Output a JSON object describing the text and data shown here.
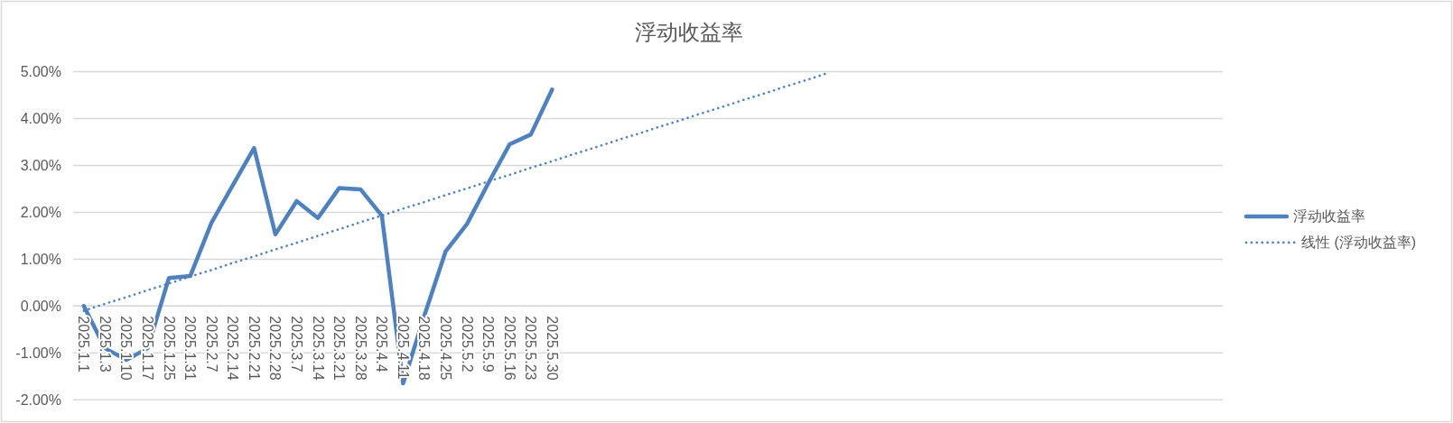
{
  "chart_data": {
    "type": "line",
    "title": "浮动收益率",
    "categories": [
      "2025.1.1",
      "2025.1.3",
      "2025.1.10",
      "2025.1.17",
      "2025.1.25",
      "2025.1.31",
      "2025.2.7",
      "2025.2.14",
      "2025.2.21",
      "2025.2.28",
      "2025.3.7",
      "2025.3.14",
      "2025.3.21",
      "2025.3.28",
      "2025.4.4",
      "2025.4.11",
      "2025.4.18",
      "2025.4.25",
      "2025.5.2",
      "2025.5.9",
      "2025.5.16",
      "2025.5.23",
      "2025.5.30",
      null,
      null,
      null,
      null,
      null,
      null,
      null,
      null,
      null,
      null,
      null,
      null,
      null,
      null,
      null,
      null,
      null,
      null,
      null,
      null,
      null,
      null,
      null,
      null,
      null,
      null,
      null,
      null,
      null,
      null,
      null
    ],
    "series": [
      {
        "name": "浮动收益率",
        "color": "#4f81bd",
        "line_style": "solid",
        "values": [
          0.0,
          -0.9,
          -1.15,
          -0.9,
          0.6,
          0.64,
          1.78,
          2.58,
          3.37,
          1.53,
          2.24,
          1.88,
          2.52,
          2.49,
          1.93,
          -1.65,
          -0.2,
          1.17,
          1.75,
          2.62,
          3.45,
          3.66,
          4.62,
          null,
          null,
          null,
          null,
          null,
          null,
          null,
          null,
          null,
          null,
          null,
          null,
          null,
          null,
          null,
          null,
          null,
          null,
          null,
          null,
          null,
          null,
          null,
          null,
          null,
          null,
          null,
          null,
          null,
          null,
          null
        ]
      },
      {
        "name": "线性 (浮动收益率)",
        "color": "#4f81bd",
        "line_style": "dotted",
        "values": [
          -0.1,
          0.05,
          0.19,
          0.34,
          0.48,
          0.63,
          0.77,
          0.92,
          1.06,
          1.21,
          1.35,
          1.5,
          1.64,
          1.79,
          1.93,
          2.08,
          2.22,
          2.37,
          2.51,
          2.66,
          2.8,
          2.95,
          3.09,
          3.24,
          3.38,
          3.53,
          3.67,
          3.82,
          3.96,
          4.11,
          4.25,
          4.4,
          4.54,
          4.69,
          4.83,
          4.98,
          null,
          null,
          null,
          null,
          null,
          null,
          null,
          null,
          null,
          null,
          null,
          null,
          null,
          null,
          null,
          null,
          null,
          null
        ]
      }
    ],
    "ylim": [
      -2,
      5
    ],
    "yticks": [
      {
        "value": -2,
        "label": "-2.00%"
      },
      {
        "value": -1,
        "label": "-1.00%"
      },
      {
        "value": 0,
        "label": "0.00%"
      },
      {
        "value": 1,
        "label": "1.00%"
      },
      {
        "value": 2,
        "label": "2.00%"
      },
      {
        "value": 3,
        "label": "3.00%"
      },
      {
        "value": 4,
        "label": "4.00%"
      },
      {
        "value": 5,
        "label": "5.00%"
      }
    ],
    "grid": "y",
    "legend": "right"
  }
}
